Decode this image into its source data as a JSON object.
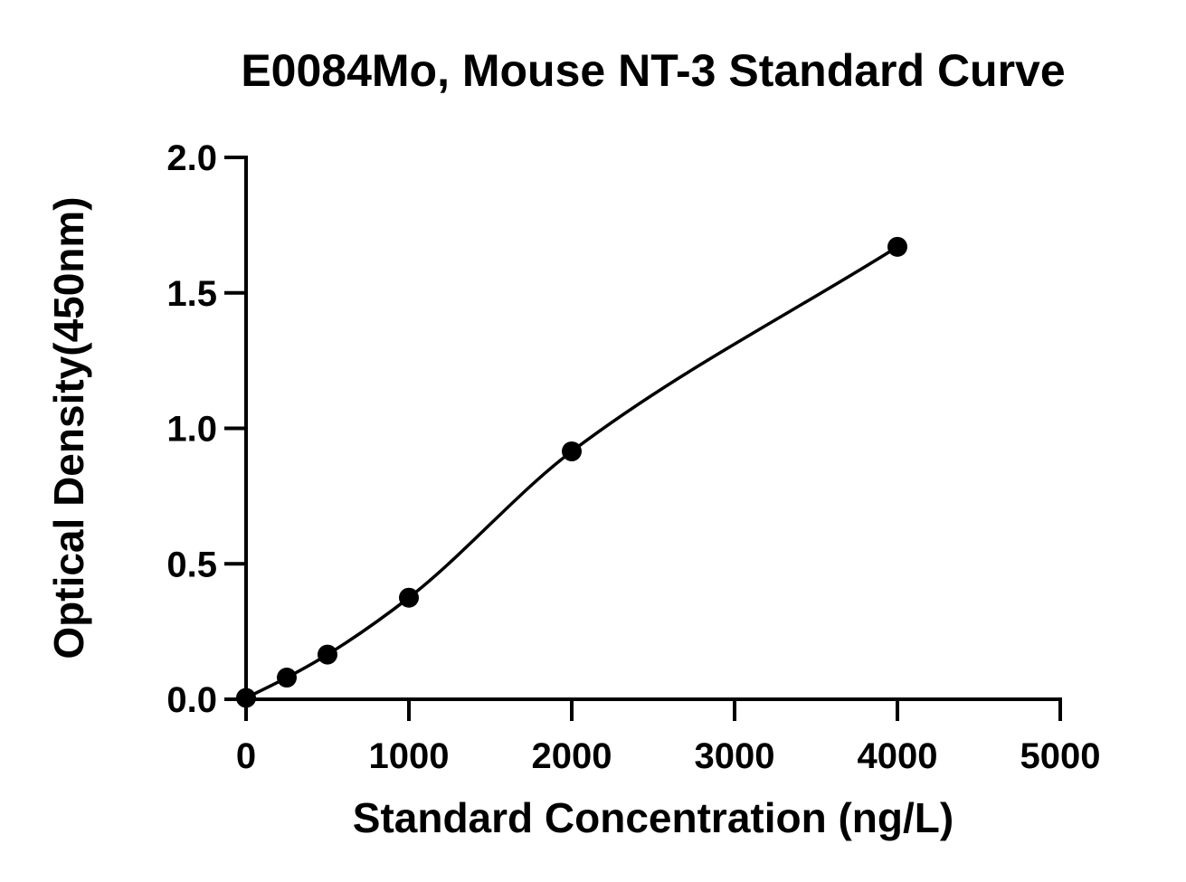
{
  "chart_data": {
    "type": "scatter",
    "title": "E0084Mo, Mouse NT-3 Standard Curve",
    "xlabel": "Standard Concentration (ng/L)",
    "ylabel": "Optical Density(450nm)",
    "xlim": [
      0,
      5000
    ],
    "ylim": [
      0,
      2.0
    ],
    "xticks": [
      0,
      1000,
      2000,
      3000,
      4000,
      5000
    ],
    "xtick_labels": [
      "0",
      "1000",
      "2000",
      "3000",
      "4000",
      "5000"
    ],
    "yticks": [
      0,
      0.5,
      1.0,
      1.5,
      2.0
    ],
    "ytick_labels": [
      "0.0",
      "0.5",
      "1.0",
      "1.5",
      "2.0"
    ],
    "grid": false,
    "legend": false,
    "fit": "4-parameter logistic curve",
    "colors": {
      "points": "#000000",
      "curve": "#000000",
      "axes": "#000000"
    },
    "series": [
      {
        "x": [
          0,
          250,
          500,
          1000,
          2000,
          4000
        ],
        "y": [
          0.005,
          0.08,
          0.165,
          0.375,
          0.915,
          1.67
        ]
      }
    ]
  }
}
